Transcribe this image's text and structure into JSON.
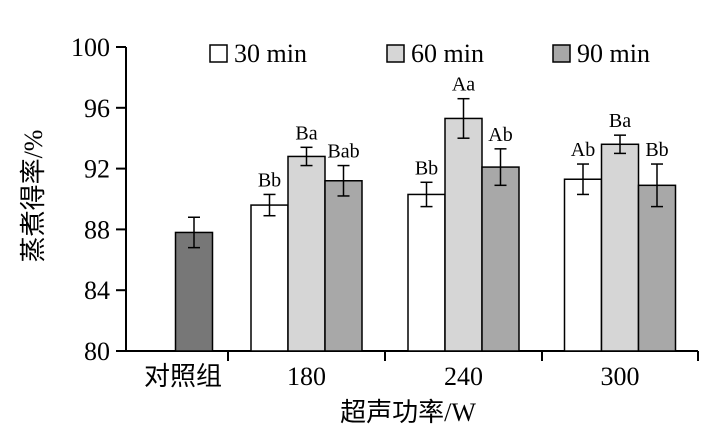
{
  "chart_data": {
    "type": "bar",
    "xlabel": "超声功率/W",
    "ylabel": "蒸煮得率/%",
    "ylim": [
      80,
      100
    ],
    "yticks": [
      80,
      84,
      88,
      92,
      96,
      100
    ],
    "legend_position": "top",
    "control": {
      "label": "对照组",
      "value": 87.8,
      "error": 1.0,
      "color": "#777777"
    },
    "categories": [
      "180",
      "240",
      "300"
    ],
    "series": [
      {
        "name": "30 min",
        "color": "#ffffff",
        "values": [
          89.6,
          90.3,
          91.3
        ],
        "errors": [
          0.7,
          0.8,
          1.0
        ],
        "letters": [
          "Bb",
          "Bb",
          "Ab"
        ]
      },
      {
        "name": "60 min",
        "color": "#d6d6d6",
        "values": [
          92.8,
          95.3,
          93.6
        ],
        "errors": [
          0.6,
          1.3,
          0.6
        ],
        "letters": [
          "Ba",
          "Aa",
          "Ba"
        ]
      },
      {
        "name": "90 min",
        "color": "#a8a8a8",
        "values": [
          91.2,
          92.1,
          90.9
        ],
        "errors": [
          1.0,
          1.2,
          1.4
        ],
        "letters": [
          "Bab",
          "Ab",
          "Bb"
        ]
      }
    ]
  }
}
